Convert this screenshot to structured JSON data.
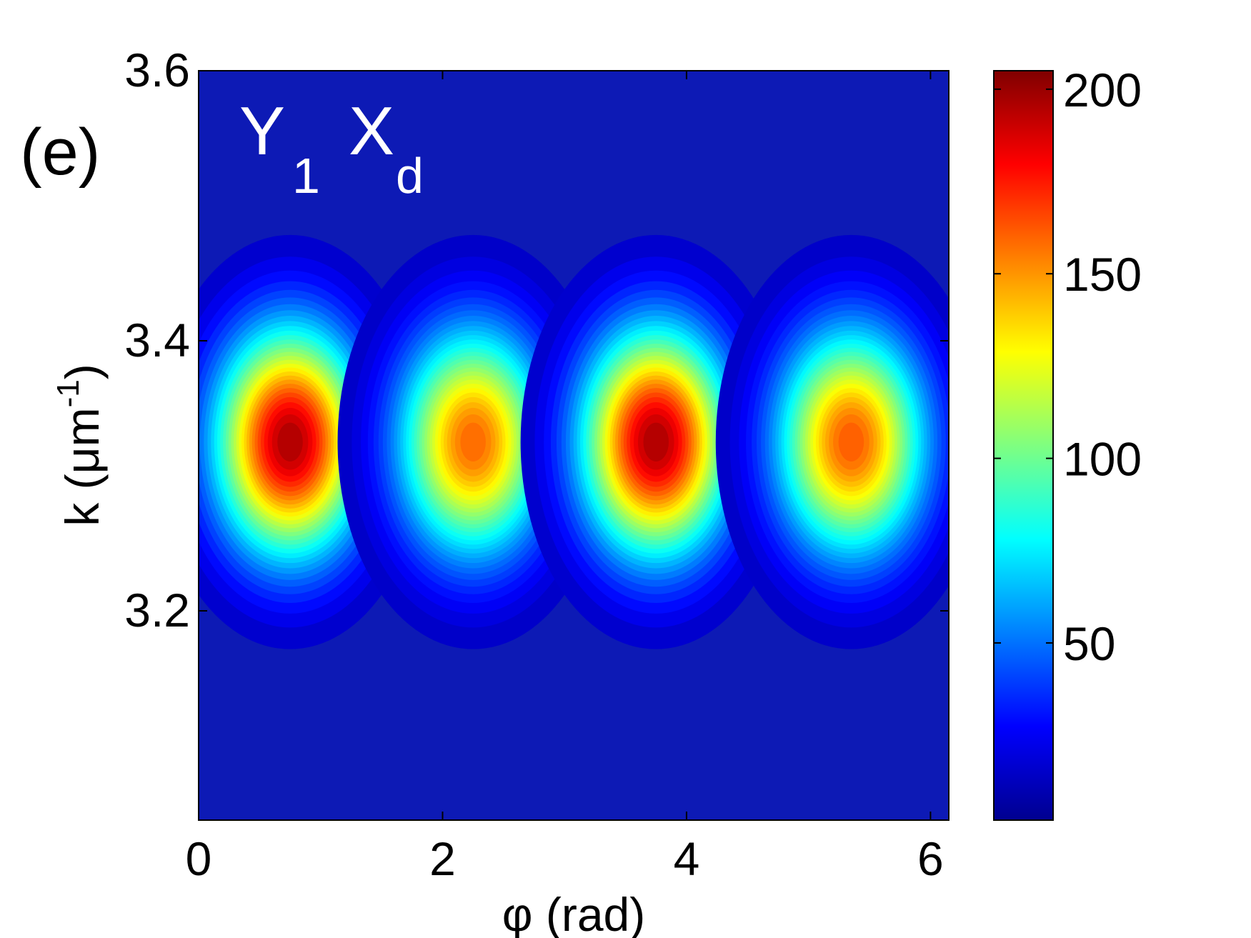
{
  "chart_data": {
    "type": "heatmap",
    "panel_label": "(e)",
    "annotation": {
      "main1": "Y",
      "sub1": "1",
      "main2": "X",
      "sub2": "d"
    },
    "xlabel": "φ (rad)",
    "ylabel": {
      "main": "k (μm",
      "sup": "-1",
      "close": ")"
    },
    "xlim": [
      0,
      6.15
    ],
    "ylim": [
      3.045,
      3.6
    ],
    "x_ticks": [
      0,
      2,
      4,
      6
    ],
    "x_tick_labels": [
      "0",
      "2",
      "4",
      "6"
    ],
    "y_ticks": [
      3.2,
      3.4,
      3.6
    ],
    "y_tick_labels": [
      "3.2",
      "3.4",
      "3.6"
    ],
    "colorbar": {
      "colormap": "jet",
      "range": [
        2,
        205
      ],
      "ticks": [
        50,
        100,
        150,
        200
      ],
      "tick_labels": [
        "50",
        "100",
        "150",
        "200"
      ]
    },
    "background_value": 12,
    "peaks": [
      {
        "phi": 0.75,
        "k": 3.325,
        "peak": 200
      },
      {
        "phi": 2.25,
        "k": 3.325,
        "peak": 162
      },
      {
        "phi": 3.75,
        "k": 3.325,
        "peak": 200
      },
      {
        "phi": 5.35,
        "k": 3.325,
        "peak": 165
      }
    ],
    "grid": false
  }
}
